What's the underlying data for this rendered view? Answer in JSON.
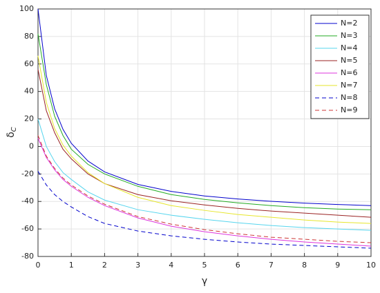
{
  "chart_data": {
    "type": "line",
    "x_label": "γ",
    "y_label": "δ",
    "y_label_sub": "C",
    "x": [
      0,
      0.25,
      0.5,
      0.75,
      1,
      1.5,
      2,
      3,
      4,
      5,
      6,
      7,
      8,
      9,
      10
    ],
    "series": [
      {
        "name": "N=2",
        "color": "#0000cc",
        "dashed": false,
        "values": [
          100,
          51.6,
          27.4,
          12.5,
          2.3,
          -10.6,
          -18.5,
          -27.6,
          -32.7,
          -36,
          -38.2,
          -39.9,
          -41.2,
          -42.2,
          -43
        ]
      },
      {
        "name": "N=3",
        "color": "#22aa22",
        "dashed": false,
        "values": [
          82,
          45,
          22,
          8,
          -2,
          -13,
          -20,
          -29,
          -35,
          -38.5,
          -41,
          -43,
          -44.5,
          -45.5,
          -46
        ]
      },
      {
        "name": "N=4",
        "color": "#55d5ee",
        "dashed": false,
        "values": [
          20,
          0,
          -11,
          -19,
          -24,
          -33,
          -39,
          -46,
          -50,
          -53,
          -55.5,
          -57.5,
          -59,
          -60,
          -61
        ]
      },
      {
        "name": "N=5",
        "color": "#992222",
        "dashed": false,
        "values": [
          56,
          26,
          10,
          -2,
          -9,
          -20,
          -27,
          -35,
          -39.5,
          -42.5,
          -45,
          -47,
          -48.5,
          -50,
          -51.5
        ]
      },
      {
        "name": "N=6",
        "color": "#dd33dd",
        "dashed": false,
        "values": [
          6,
          -8,
          -17,
          -24,
          -29,
          -37,
          -43,
          -52,
          -58,
          -62,
          -65,
          -67.5,
          -69.5,
          -71,
          -72.5
        ]
      },
      {
        "name": "N=7",
        "color": "#e6e62a",
        "dashed": false,
        "values": [
          66,
          32,
          13,
          1,
          -7,
          -19,
          -27,
          -37,
          -43,
          -46.5,
          -49.5,
          -51.5,
          -53.5,
          -55,
          -56
        ]
      },
      {
        "name": "N=8",
        "color": "#0000cc",
        "dashed": true,
        "values": [
          -18,
          -28,
          -35,
          -40,
          -44,
          -51,
          -56,
          -61.5,
          -65,
          -67.5,
          -69.5,
          -71,
          -72,
          -73,
          -74
        ]
      },
      {
        "name": "N=9",
        "color": "#cc3333",
        "dashed": true,
        "values": [
          8,
          -7,
          -16,
          -23,
          -28,
          -36,
          -42,
          -51,
          -56.5,
          -60.5,
          -63.5,
          -66,
          -67.5,
          -69,
          -70
        ]
      }
    ],
    "xlim": [
      0,
      10
    ],
    "xticks": [
      0,
      1,
      2,
      3,
      4,
      5,
      6,
      7,
      8,
      9,
      10
    ],
    "ylim": [
      -80,
      100
    ],
    "yticks": [
      -80,
      -60,
      -40,
      -20,
      0,
      20,
      40,
      60,
      80,
      100
    ],
    "grid": true,
    "legend": "top-right"
  }
}
